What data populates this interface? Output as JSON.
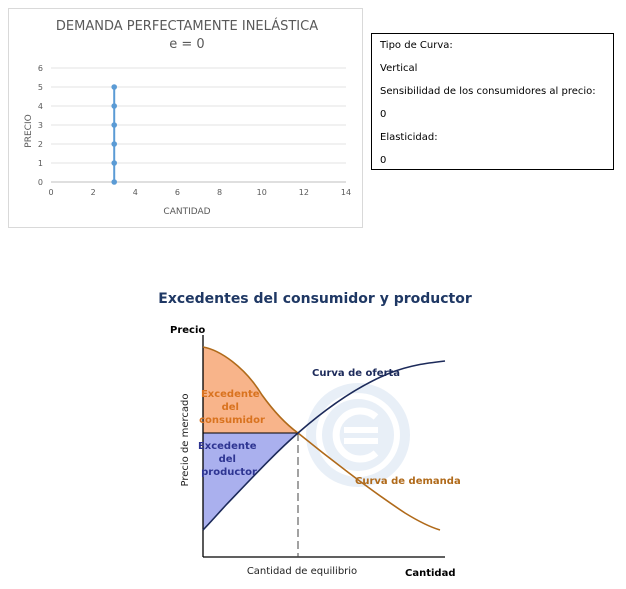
{
  "chart_data": [
    {
      "type": "scatter",
      "title": "DEMANDA PERFECTAMENTE INELÁSTICA",
      "subtitle": "e = 0",
      "xlabel": "CANTIDAD",
      "ylabel": "PRECIO",
      "xlim": [
        0,
        14
      ],
      "ylim": [
        0,
        6
      ],
      "x_ticks": [
        "0",
        "2",
        "4",
        "6",
        "8",
        "10",
        "12",
        "14"
      ],
      "y_ticks": [
        "0",
        "1",
        "2",
        "3",
        "4",
        "5",
        "6"
      ],
      "grid": "horizontal",
      "series": [
        {
          "color": "#5b9bd5",
          "x": [
            3,
            3,
            3,
            3,
            3,
            3
          ],
          "y": [
            0,
            1,
            2,
            3,
            4,
            5
          ]
        }
      ]
    },
    {
      "type": "line",
      "title": "Excedentes del consumidor y productor",
      "xlabel": "Cantidad",
      "ylabel": "Precio",
      "x_axis_label": "Cantidad de equilibrio",
      "y_axis_label": "Precio de mercado",
      "series": [
        {
          "name": "Curva de oferta",
          "color": "#1c2a5a"
        },
        {
          "name": "Curva de demanda",
          "color": "#b06a1a"
        }
      ],
      "areas": [
        {
          "name": "Excedente del consumidor",
          "color": "#f8b48a"
        },
        {
          "name": "Excedente del productor",
          "color": "#aab0ee"
        }
      ]
    }
  ],
  "info": {
    "tipo_label": "Tipo de Curva:",
    "tipo_value": "Vertical",
    "sens_label": "Sensibilidad de los consumidores al precio:",
    "sens_value": "0",
    "elast_label": "Elasticidad:",
    "elast_value": "0"
  },
  "labels2": {
    "consumer_lines": [
      "Excedente",
      "del",
      "consumidor"
    ],
    "producer_lines": [
      "Excedente",
      "del",
      "productor"
    ]
  }
}
